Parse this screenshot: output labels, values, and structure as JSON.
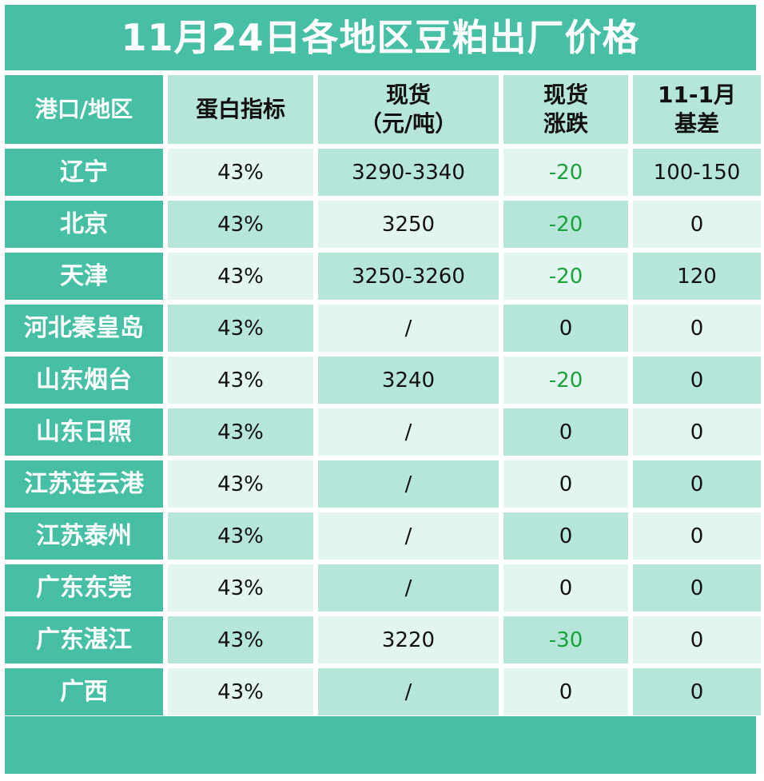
{
  "title": "11月24日各地区豆粕出厂价格",
  "headers": {
    "region": "港口/地区",
    "protein": "蛋白指标",
    "spot_line1": "现货",
    "spot_line2": "（元/吨）",
    "change_line1": "现货",
    "change_line2": "涨跌",
    "basis_line1": "11-1月",
    "basis_line2": "基差"
  },
  "rows": [
    {
      "region": "辽宁",
      "protein": "43%",
      "spot": "3290-3340",
      "change": "-20",
      "basis": "100-150"
    },
    {
      "region": "北京",
      "protein": "43%",
      "spot": "3250",
      "change": "-20",
      "basis": "0"
    },
    {
      "region": "天津",
      "protein": "43%",
      "spot": "3250-3260",
      "change": "-20",
      "basis": "120"
    },
    {
      "region": "河北秦皇岛",
      "protein": "43%",
      "spot": "/",
      "change": "0",
      "basis": "0"
    },
    {
      "region": "山东烟台",
      "protein": "43%",
      "spot": "3240",
      "change": "-20",
      "basis": "0"
    },
    {
      "region": "山东日照",
      "protein": "43%",
      "spot": "/",
      "change": "0",
      "basis": "0"
    },
    {
      "region": "江苏连云港",
      "protein": "43%",
      "spot": "/",
      "change": "0",
      "basis": "0"
    },
    {
      "region": "江苏泰州",
      "protein": "43%",
      "spot": "/",
      "change": "0",
      "basis": "0"
    },
    {
      "region": "广东东莞",
      "protein": "43%",
      "spot": "/",
      "change": "0",
      "basis": "0"
    },
    {
      "region": "广东湛江",
      "protein": "43%",
      "spot": "3220",
      "change": "-30",
      "basis": "0"
    },
    {
      "region": "广西",
      "protein": "43%",
      "spot": "/",
      "change": "0",
      "basis": "0"
    }
  ],
  "colors": {
    "teal": "#47bfa4",
    "mint": "#b6e5da",
    "pale": "#e2f5f0",
    "negative_change": "#19a33a"
  }
}
